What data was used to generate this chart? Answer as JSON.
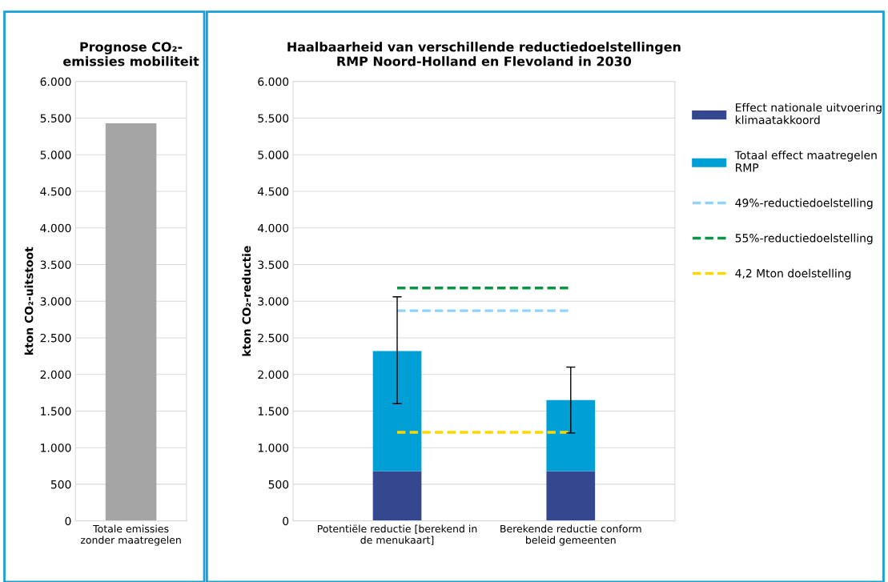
{
  "chart_data": [
    {
      "type": "bar",
      "title": "Prognose CO₂-\nemissies mobiliteit",
      "ylabel": "kton CO₂-uitstoot",
      "categories": [
        "Totale emissies\nzonder maatregelen"
      ],
      "values": [
        5430
      ],
      "color": "#a5a5a5",
      "ylim": [
        0,
        6000
      ],
      "yticks": [
        {
          "value": 0,
          "label": "0"
        },
        {
          "value": 500,
          "label": "500"
        },
        {
          "value": 1000,
          "label": "1.000"
        },
        {
          "value": 1500,
          "label": "1.500"
        },
        {
          "value": 2000,
          "label": "2.000"
        },
        {
          "value": 2500,
          "label": "2.500"
        },
        {
          "value": 3000,
          "label": "3.000"
        },
        {
          "value": 3500,
          "label": "3.500"
        },
        {
          "value": 4000,
          "label": "4.000"
        },
        {
          "value": 4500,
          "label": "4.500"
        },
        {
          "value": 5000,
          "label": "5.000"
        },
        {
          "value": 5500,
          "label": "5.500"
        },
        {
          "value": 6000,
          "label": "6.000"
        }
      ],
      "grid": "y"
    },
    {
      "type": "bar",
      "title": "Haalbaarheid van verschillende reductiedoelstellingen\nRMP Noord-Holland en Flevoland in 2030",
      "ylabel": "kton CO₂-reductie",
      "categories": [
        "Potentiële reductie [berekend in\nde menukaart]",
        "Berekende reductie conform\nbeleid gemeenten"
      ],
      "stacked": true,
      "series": [
        {
          "name": "Effect nationale uitvoering\nklimaatakkoord",
          "color": "#35478f",
          "values": [
            680,
            680
          ]
        },
        {
          "name": "Totaal effect maatregelen\nRMP",
          "color": "#009fd6",
          "values": [
            1640,
            970
          ],
          "errors": [
            [
              1600,
              3060
            ],
            [
              1200,
              2100
            ]
          ]
        },
        {
          "name": "49%-reductiedoelstelling",
          "type": "line",
          "line_style": "dashed",
          "color": "#8fd3fb",
          "values": [
            2870,
            2870
          ]
        },
        {
          "name": "55%-reductiedoelstelling",
          "type": "line",
          "line_style": "dashed",
          "color": "#0b9444",
          "values": [
            3180,
            3180
          ]
        },
        {
          "name": "4,2 Mton doelstelling",
          "type": "line",
          "line_style": "dashed",
          "color": "#ffd700",
          "values": [
            1210,
            1210
          ]
        }
      ],
      "ylim": [
        0,
        6000
      ],
      "yticks": [
        {
          "value": 0,
          "label": "0"
        },
        {
          "value": 500,
          "label": "500"
        },
        {
          "value": 1000,
          "label": "1.000"
        },
        {
          "value": 1500,
          "label": "1.500"
        },
        {
          "value": 2000,
          "label": "2.000"
        },
        {
          "value": 2500,
          "label": "2.500"
        },
        {
          "value": 3000,
          "label": "3.000"
        },
        {
          "value": 3500,
          "label": "3.500"
        },
        {
          "value": 4000,
          "label": "4.000"
        },
        {
          "value": 4500,
          "label": "4.500"
        },
        {
          "value": 5000,
          "label": "5.000"
        },
        {
          "value": 5500,
          "label": "5.500"
        },
        {
          "value": 6000,
          "label": "6.000"
        }
      ],
      "grid": "y",
      "legend": "right"
    }
  ]
}
